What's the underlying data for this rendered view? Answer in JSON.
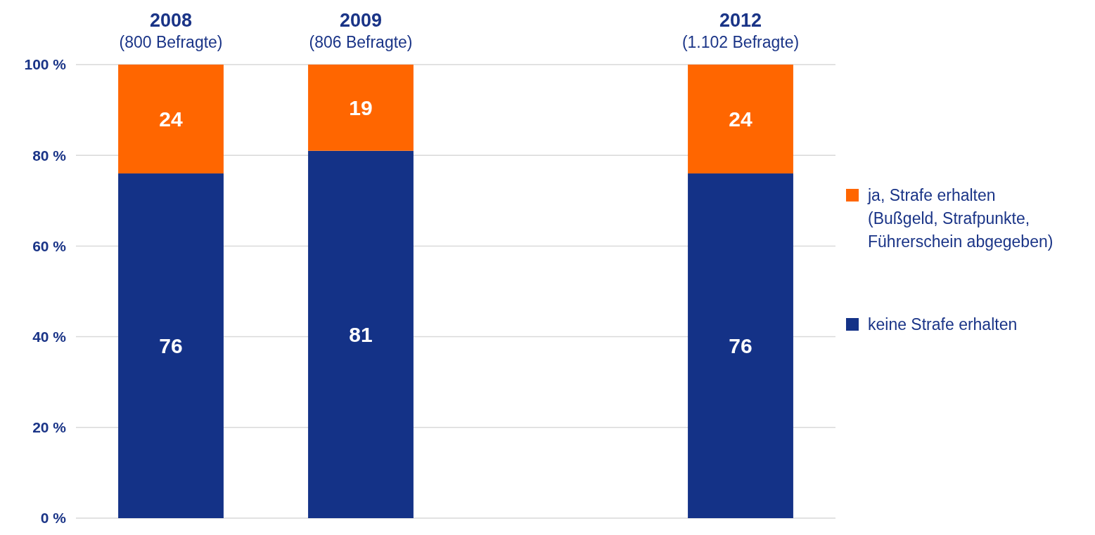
{
  "chart_data": {
    "type": "bar",
    "stacked": true,
    "categories": [
      "2008\n(800 Befragte)",
      "2009\n(806 Befragte)",
      null,
      "2012\n(1.102 Befragte)"
    ],
    "series": [
      {
        "name": "keine Strafe erhalten",
        "color": "#143287",
        "values": [
          76,
          81,
          null,
          76
        ]
      },
      {
        "name": "ja, Strafe erhalten\n(Bußgeld, Strafpunkte,\nFührerschein abgegeben)",
        "color": "#ff6600",
        "values": [
          24,
          19,
          null,
          24
        ]
      }
    ],
    "ylim": [
      0,
      100
    ],
    "yticks": [
      {
        "value": 0,
        "label": "0 %"
      },
      {
        "value": 20,
        "label": "20 %"
      },
      {
        "value": 40,
        "label": "40 %"
      },
      {
        "value": 60,
        "label": "60 %"
      },
      {
        "value": 80,
        "label": "80 %"
      },
      {
        "value": 100,
        "label": "100 %"
      }
    ],
    "grid": "y",
    "legend": "right",
    "data_labels": true
  }
}
